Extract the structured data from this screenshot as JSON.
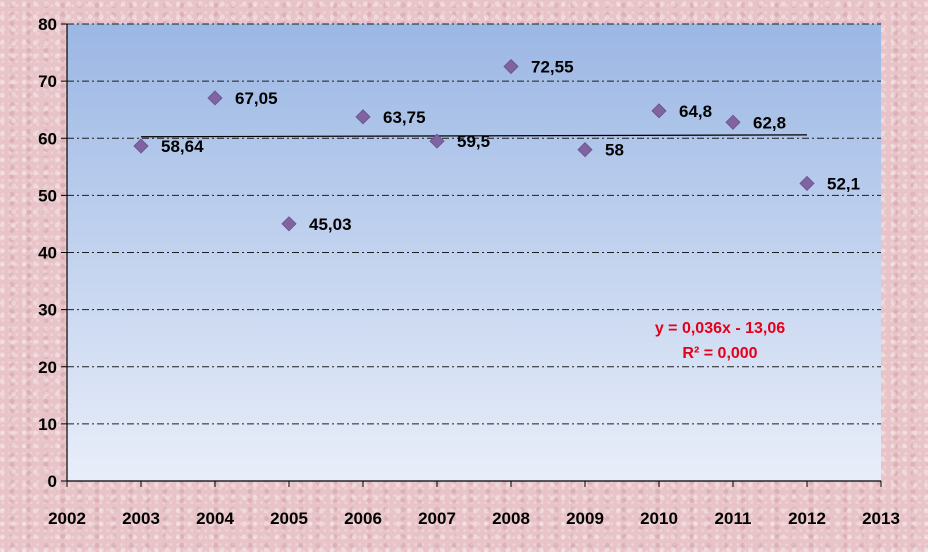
{
  "chart_data": {
    "type": "scatter",
    "x": [
      2003,
      2004,
      2005,
      2006,
      2007,
      2008,
      2009,
      2010,
      2011,
      2012
    ],
    "series": [
      {
        "values": [
          58.64,
          67.05,
          45.03,
          63.75,
          59.5,
          72.55,
          58,
          64.8,
          62.8,
          52.1
        ],
        "labels": [
          "58,64",
          "67,05",
          "45,03",
          "63,75",
          "59,5",
          "72,55",
          "58",
          "64,8",
          "62,8",
          "52,1"
        ],
        "color": "#8064a2"
      }
    ],
    "xlim": [
      2002,
      2013
    ],
    "ylim": [
      0,
      80
    ],
    "x_ticks": [
      "2002",
      "2003",
      "2004",
      "2005",
      "2006",
      "2007",
      "2008",
      "2009",
      "2010",
      "2011",
      "2012",
      "2013"
    ],
    "y_ticks": [
      "0",
      "10",
      "20",
      "30",
      "40",
      "50",
      "60",
      "70",
      "80"
    ],
    "gridlines": "horizontal dash-dot",
    "trendline": {
      "type": "linear",
      "equation": "y = 0,036x - 13,06",
      "r_squared": "R² = 0,000",
      "color": "#000000",
      "label_color": "#e3001b"
    },
    "plot_background": "gradient #9bb7e4 to #e8eef9"
  }
}
